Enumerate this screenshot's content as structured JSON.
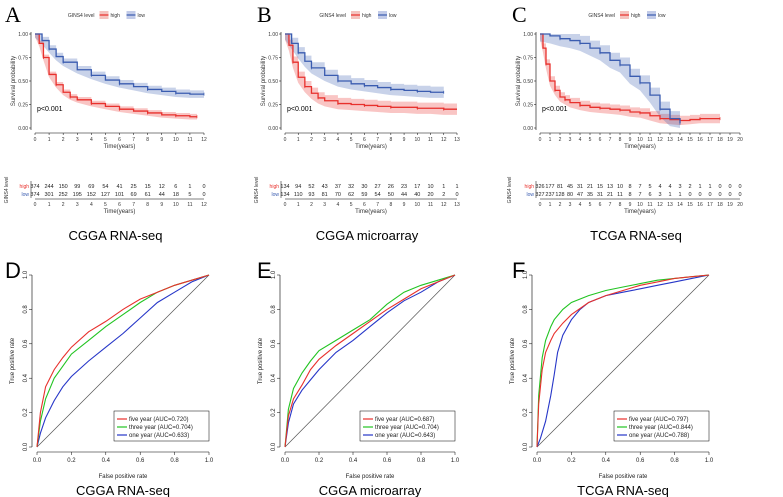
{
  "figure": {
    "panel_letters": [
      "A",
      "B",
      "C",
      "D",
      "E",
      "F"
    ]
  },
  "chart_data": [
    {
      "type": "line",
      "panel": "A",
      "subtitle": "CGGA RNA-seq",
      "legend_title": "GINS4 level",
      "xlabel": "Time(years)",
      "ylabel": "Survival probability",
      "xlim": [
        0,
        12
      ],
      "ylim": [
        0,
        1
      ],
      "xticks": [
        0,
        1,
        2,
        3,
        4,
        5,
        6,
        7,
        8,
        9,
        10,
        11,
        12
      ],
      "yticks": [
        "0.00",
        "0.25",
        "0.50",
        "0.75",
        "1.00"
      ],
      "pvalue": "p<0.001",
      "colors": {
        "high": "#e8302c",
        "low": "#3a5cb0"
      },
      "series": [
        {
          "name": "high",
          "x": [
            0,
            0.3,
            0.6,
            1,
            1.5,
            2,
            2.5,
            3,
            4,
            5,
            6,
            7,
            8,
            9,
            10,
            11,
            11.5
          ],
          "y": [
            1,
            0.9,
            0.75,
            0.57,
            0.46,
            0.38,
            0.33,
            0.3,
            0.26,
            0.23,
            0.2,
            0.18,
            0.16,
            0.14,
            0.13,
            0.12,
            0.12
          ],
          "ci": 0.03
        },
        {
          "name": "low",
          "x": [
            0,
            0.5,
            1,
            1.5,
            2,
            3,
            4,
            5,
            6,
            7,
            8,
            9,
            10,
            11,
            12
          ],
          "y": [
            1,
            0.93,
            0.84,
            0.76,
            0.7,
            0.62,
            0.56,
            0.51,
            0.47,
            0.44,
            0.41,
            0.39,
            0.37,
            0.36,
            0.36
          ],
          "ci": 0.04
        }
      ],
      "risk_table": {
        "label": "GINS4 level",
        "rows": [
          {
            "name": "high",
            "counts": [
              "374",
              "244",
              "150",
              "99",
              "69",
              "54",
              "41",
              "25",
              "15",
              "12",
              "6",
              "1",
              "0"
            ]
          },
          {
            "name": "low",
            "counts": [
              "374",
              "301",
              "252",
              "195",
              "152",
              "127",
              "101",
              "69",
              "61",
              "44",
              "18",
              "5",
              "0"
            ]
          }
        ]
      }
    },
    {
      "type": "line",
      "panel": "B",
      "subtitle": "CGGA microarray",
      "legend_title": "GINS4 level",
      "xlabel": "Time(years)",
      "ylabel": "Survival probability",
      "xlim": [
        0,
        13
      ],
      "ylim": [
        0,
        1
      ],
      "xticks": [
        0,
        1,
        2,
        3,
        4,
        5,
        6,
        7,
        8,
        9,
        10,
        11,
        12,
        13
      ],
      "yticks": [
        "0.00",
        "0.25",
        "0.50",
        "0.75",
        "1.00"
      ],
      "pvalue": "p<0.001",
      "colors": {
        "high": "#e8302c",
        "low": "#3a5cb0"
      },
      "series": [
        {
          "name": "high",
          "x": [
            0,
            0.3,
            0.6,
            1,
            1.5,
            2,
            2.5,
            3,
            4,
            5,
            6,
            7,
            8,
            9,
            10,
            11,
            12,
            13
          ],
          "y": [
            1,
            0.88,
            0.7,
            0.54,
            0.44,
            0.37,
            0.32,
            0.29,
            0.26,
            0.25,
            0.24,
            0.23,
            0.22,
            0.22,
            0.21,
            0.21,
            0.2,
            0.2
          ],
          "ci": 0.06
        },
        {
          "name": "low",
          "x": [
            0,
            0.5,
            1,
            1.5,
            2,
            3,
            4,
            5,
            6,
            7,
            8,
            9,
            10,
            11,
            12
          ],
          "y": [
            1,
            0.9,
            0.8,
            0.71,
            0.64,
            0.56,
            0.5,
            0.47,
            0.45,
            0.43,
            0.41,
            0.4,
            0.39,
            0.38,
            0.38
          ],
          "ci": 0.06
        }
      ],
      "risk_table": {
        "label": "GINS4 level",
        "rows": [
          {
            "name": "high",
            "counts": [
              "134",
              "94",
              "52",
              "43",
              "37",
              "32",
              "30",
              "27",
              "26",
              "23",
              "17",
              "10",
              "1",
              "1"
            ]
          },
          {
            "name": "low",
            "counts": [
              "134",
              "110",
              "93",
              "81",
              "70",
              "62",
              "59",
              "54",
              "50",
              "44",
              "40",
              "20",
              "2",
              "0"
            ]
          }
        ]
      }
    },
    {
      "type": "line",
      "panel": "C",
      "subtitle": "TCGA RNA-seq",
      "legend_title": "GINS4 level",
      "xlabel": "Time(years)",
      "ylabel": "Survival probability",
      "xlim": [
        0,
        20
      ],
      "ylim": [
        0,
        1
      ],
      "xticks": [
        0,
        1,
        2,
        3,
        4,
        5,
        6,
        7,
        8,
        9,
        10,
        11,
        12,
        13,
        14,
        15,
        16,
        17,
        18,
        19,
        20
      ],
      "yticks": [
        "0.00",
        "0.25",
        "0.50",
        "0.75",
        "1.00"
      ],
      "pvalue": "p<0.001",
      "colors": {
        "high": "#e8302c",
        "low": "#3a5cb0"
      },
      "series": [
        {
          "name": "high",
          "x": [
            0,
            0.3,
            0.6,
            1,
            1.5,
            2,
            2.5,
            3,
            4,
            5,
            6,
            7,
            8,
            9,
            10,
            11,
            12,
            13,
            14,
            15,
            16,
            17,
            18
          ],
          "y": [
            1,
            0.85,
            0.68,
            0.5,
            0.4,
            0.33,
            0.3,
            0.27,
            0.24,
            0.22,
            0.21,
            0.2,
            0.19,
            0.17,
            0.16,
            0.13,
            0.1,
            0.09,
            0.08,
            0.09,
            0.1,
            0.1,
            0.1
          ],
          "ci": 0.05
        },
        {
          "name": "low",
          "x": [
            0,
            1,
            2,
            3,
            4,
            5,
            6,
            7,
            8,
            9,
            10,
            11,
            12,
            13,
            14
          ],
          "y": [
            1,
            0.98,
            0.95,
            0.93,
            0.9,
            0.85,
            0.8,
            0.72,
            0.67,
            0.55,
            0.48,
            0.35,
            0.2,
            0.1,
            0.05
          ],
          "ci": 0.08
        }
      ],
      "risk_table": {
        "label": "GINS4 level",
        "rows": [
          {
            "name": "high",
            "counts": [
              "326",
              "177",
              "81",
              "45",
              "31",
              "21",
              "15",
              "13",
              "10",
              "8",
              "7",
              "5",
              "4",
              "4",
              "3",
              "2",
              "1",
              "1",
              "0",
              "0",
              "0"
            ]
          },
          {
            "name": "low",
            "counts": [
              "327",
              "237",
              "128",
              "80",
              "47",
              "35",
              "31",
              "21",
              "11",
              "8",
              "7",
              "6",
              "3",
              "1",
              "1",
              "0",
              "0",
              "0",
              "0",
              "0",
              "0"
            ]
          }
        ]
      }
    },
    {
      "type": "line",
      "panel": "D",
      "subtitle": "CGGA RNA-seq",
      "xlabel": "False positive rate",
      "ylabel": "True positive rate",
      "xlim": [
        0,
        1
      ],
      "ylim": [
        0,
        1
      ],
      "xticks": [
        "0.0",
        "0.2",
        "0.4",
        "0.6",
        "0.8",
        "1.0"
      ],
      "yticks": [
        "0.0",
        "0.2",
        "0.4",
        "0.6",
        "0.8",
        "1.0"
      ],
      "series": [
        {
          "name": "five year (AUC=0.720)",
          "color": "#e8302c",
          "x": [
            0,
            0.02,
            0.05,
            0.1,
            0.15,
            0.2,
            0.3,
            0.4,
            0.5,
            0.6,
            0.7,
            0.8,
            0.9,
            1
          ],
          "y": [
            0,
            0.2,
            0.35,
            0.45,
            0.52,
            0.58,
            0.67,
            0.73,
            0.8,
            0.86,
            0.9,
            0.94,
            0.97,
            1
          ]
        },
        {
          "name": "three year (AUC=0.704)",
          "color": "#22c422",
          "x": [
            0,
            0.02,
            0.05,
            0.1,
            0.15,
            0.2,
            0.3,
            0.4,
            0.5,
            0.6,
            0.7,
            0.8,
            0.9,
            1
          ],
          "y": [
            0,
            0.15,
            0.28,
            0.4,
            0.47,
            0.54,
            0.62,
            0.7,
            0.77,
            0.84,
            0.9,
            0.94,
            0.97,
            1
          ]
        },
        {
          "name": "one year (AUC=0.633)",
          "color": "#2636c8",
          "x": [
            0,
            0.02,
            0.05,
            0.1,
            0.15,
            0.2,
            0.3,
            0.4,
            0.5,
            0.6,
            0.7,
            0.8,
            0.9,
            1
          ],
          "y": [
            0,
            0.08,
            0.17,
            0.27,
            0.35,
            0.41,
            0.5,
            0.58,
            0.66,
            0.75,
            0.84,
            0.9,
            0.96,
            1
          ]
        }
      ]
    },
    {
      "type": "line",
      "panel": "E",
      "subtitle": "CGGA microarray",
      "xlabel": "False positive rate",
      "ylabel": "True positive rate",
      "xlim": [
        0,
        1
      ],
      "ylim": [
        0,
        1
      ],
      "xticks": [
        "0.0",
        "0.2",
        "0.4",
        "0.6",
        "0.8",
        "1.0"
      ],
      "yticks": [
        "0.0",
        "0.2",
        "0.4",
        "0.6",
        "0.8",
        "1.0"
      ],
      "series": [
        {
          "name": "five year (AUC=0.687)",
          "color": "#e8302c",
          "x": [
            0,
            0.02,
            0.05,
            0.1,
            0.15,
            0.2,
            0.3,
            0.4,
            0.5,
            0.6,
            0.7,
            0.8,
            0.9,
            1
          ],
          "y": [
            0,
            0.18,
            0.28,
            0.36,
            0.45,
            0.51,
            0.59,
            0.66,
            0.73,
            0.8,
            0.86,
            0.92,
            0.96,
            1
          ]
        },
        {
          "name": "three year (AUC=0.704)",
          "color": "#22c422",
          "x": [
            0,
            0.02,
            0.05,
            0.1,
            0.15,
            0.2,
            0.3,
            0.4,
            0.5,
            0.6,
            0.7,
            0.8,
            0.9,
            1
          ],
          "y": [
            0,
            0.22,
            0.34,
            0.43,
            0.5,
            0.56,
            0.62,
            0.68,
            0.74,
            0.83,
            0.9,
            0.94,
            0.97,
            1
          ]
        },
        {
          "name": "one year (AUC=0.643)",
          "color": "#2636c8",
          "x": [
            0,
            0.02,
            0.05,
            0.1,
            0.15,
            0.2,
            0.3,
            0.4,
            0.5,
            0.6,
            0.7,
            0.8,
            0.9,
            1
          ],
          "y": [
            0,
            0.14,
            0.25,
            0.33,
            0.39,
            0.45,
            0.55,
            0.62,
            0.7,
            0.78,
            0.85,
            0.9,
            0.96,
            1
          ]
        }
      ]
    },
    {
      "type": "line",
      "panel": "F",
      "subtitle": "TCGA RNA-seq",
      "xlabel": "False positive rate",
      "ylabel": "True positive rate",
      "xlim": [
        0,
        1
      ],
      "ylim": [
        0,
        1
      ],
      "xticks": [
        "0.0",
        "0.2",
        "0.4",
        "0.6",
        "0.8",
        "1.0"
      ],
      "yticks": [
        "0.0",
        "0.2",
        "0.4",
        "0.6",
        "0.8",
        "1.0"
      ],
      "series": [
        {
          "name": "five year (AUC=0.797)",
          "color": "#e8302c",
          "x": [
            0,
            0.01,
            0.03,
            0.05,
            0.08,
            0.1,
            0.15,
            0.2,
            0.3,
            0.4,
            0.5,
            0.6,
            0.7,
            0.8,
            0.9,
            1
          ],
          "y": [
            0,
            0.25,
            0.45,
            0.55,
            0.62,
            0.66,
            0.72,
            0.77,
            0.84,
            0.88,
            0.91,
            0.94,
            0.96,
            0.98,
            0.99,
            1
          ]
        },
        {
          "name": "three year (AUC=0.844)",
          "color": "#22c422",
          "x": [
            0,
            0.01,
            0.03,
            0.05,
            0.08,
            0.1,
            0.15,
            0.2,
            0.3,
            0.4,
            0.5,
            0.6,
            0.7,
            0.8,
            0.9,
            1
          ],
          "y": [
            0,
            0.3,
            0.52,
            0.62,
            0.7,
            0.74,
            0.8,
            0.84,
            0.88,
            0.91,
            0.93,
            0.95,
            0.97,
            0.98,
            0.99,
            1
          ]
        },
        {
          "name": "one year (AUC=0.788)",
          "color": "#2636c8",
          "x": [
            0,
            0.02,
            0.05,
            0.08,
            0.1,
            0.12,
            0.15,
            0.2,
            0.25,
            0.3,
            0.4,
            0.5,
            0.6,
            0.7,
            0.8,
            0.9,
            1
          ],
          "y": [
            0,
            0.05,
            0.15,
            0.3,
            0.42,
            0.55,
            0.65,
            0.74,
            0.8,
            0.84,
            0.88,
            0.9,
            0.92,
            0.94,
            0.96,
            0.98,
            1
          ]
        }
      ]
    }
  ]
}
